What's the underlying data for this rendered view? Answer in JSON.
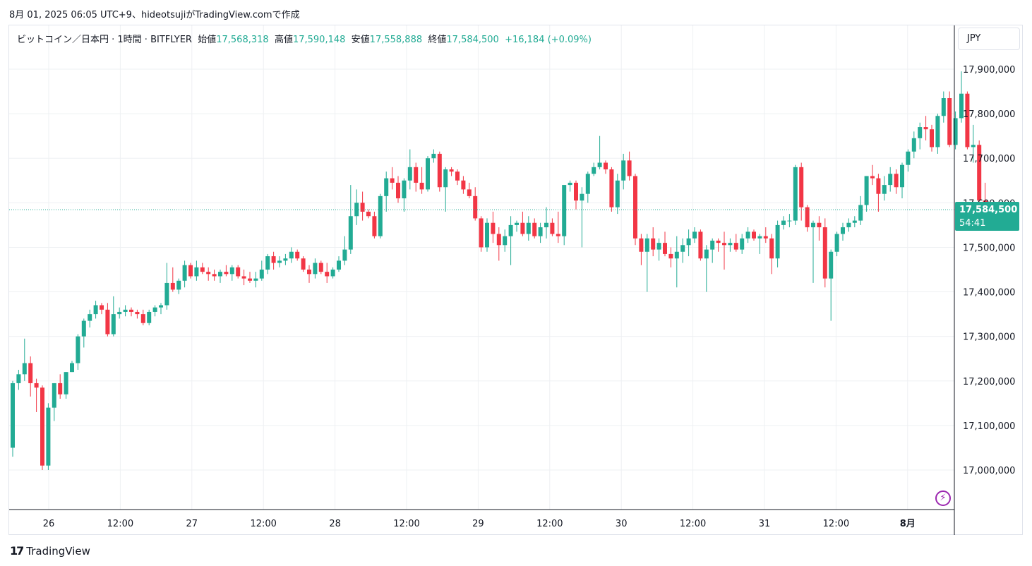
{
  "caption": "8月 01, 2025 06:05 UTC+9、hideotsujiがTradingView.comで作成",
  "legend": {
    "symbol": "ビットコイン／日本円 · 1時間 · BITFLYER",
    "open_label": "始値",
    "open": "17,568,318",
    "high_label": "高値",
    "high": "17,590,148",
    "low_label": "安値",
    "low": "17,558,888",
    "close_label": "終値",
    "close": "17,584,500",
    "change": "+16,184 (+0.09%)"
  },
  "currency_button": "JPY",
  "price_tag": {
    "price": "17,584,500",
    "countdown": "54:41"
  },
  "brand": {
    "mark": "17",
    "name": "TradingView"
  },
  "colors": {
    "up": "#22ab94",
    "down": "#f23645",
    "grid": "#eef0f3",
    "last_price_line": "#22ab94"
  },
  "chart_data": {
    "type": "candlestick",
    "ylim": [
      16910000,
      17960000
    ],
    "y_ticks": [
      17000000,
      17100000,
      17200000,
      17300000,
      17400000,
      17500000,
      17600000,
      17700000,
      17800000,
      17900000
    ],
    "y_tick_labels": [
      "17,000,000",
      "17,100,000",
      "17,200,000",
      "17,300,000",
      "17,400,000",
      "17,500,000",
      "17,600,000",
      "17,700,000",
      "17,800,000",
      "17,900,000"
    ],
    "x_labels": [
      {
        "label": "26",
        "hour": 4,
        "bold": false
      },
      {
        "label": "12:00",
        "hour": 16,
        "bold": false
      },
      {
        "label": "27",
        "hour": 28,
        "bold": false
      },
      {
        "label": "12:00",
        "hour": 40,
        "bold": false
      },
      {
        "label": "28",
        "hour": 52,
        "bold": false
      },
      {
        "label": "12:00",
        "hour": 64,
        "bold": false
      },
      {
        "label": "29",
        "hour": 76,
        "bold": false
      },
      {
        "label": "12:00",
        "hour": 88,
        "bold": false
      },
      {
        "label": "30",
        "hour": 100,
        "bold": false
      },
      {
        "label": "12:00",
        "hour": 112,
        "bold": false
      },
      {
        "label": "31",
        "hour": 124,
        "bold": false
      },
      {
        "label": "12:00",
        "hour": 136,
        "bold": false
      },
      {
        "label": "8月",
        "hour": 148,
        "bold": true
      }
    ],
    "last_price": 17584500,
    "candles": [
      [
        17050000,
        17200000,
        17030000,
        17195000
      ],
      [
        17195000,
        17225000,
        17180000,
        17215000
      ],
      [
        17215000,
        17295000,
        17200000,
        17240000
      ],
      [
        17240000,
        17255000,
        17165000,
        17195000
      ],
      [
        17195000,
        17205000,
        17130000,
        17185000
      ],
      [
        17185000,
        17190000,
        17000000,
        17010000
      ],
      [
        17010000,
        17150000,
        17000000,
        17140000
      ],
      [
        17140000,
        17195000,
        17110000,
        17195000
      ],
      [
        17195000,
        17215000,
        17160000,
        17170000
      ],
      [
        17170000,
        17220000,
        17160000,
        17220000
      ],
      [
        17220000,
        17245000,
        17220000,
        17240000
      ],
      [
        17240000,
        17305000,
        17225000,
        17300000
      ],
      [
        17300000,
        17340000,
        17275000,
        17335000
      ],
      [
        17335000,
        17360000,
        17320000,
        17350000
      ],
      [
        17350000,
        17380000,
        17340000,
        17370000
      ],
      [
        17370000,
        17375000,
        17350000,
        17360000
      ],
      [
        17360000,
        17375000,
        17300000,
        17305000
      ],
      [
        17305000,
        17390000,
        17300000,
        17350000
      ],
      [
        17350000,
        17365000,
        17340000,
        17355000
      ],
      [
        17355000,
        17370000,
        17345000,
        17360000
      ],
      [
        17360000,
        17365000,
        17345000,
        17355000
      ],
      [
        17355000,
        17360000,
        17340000,
        17350000
      ],
      [
        17350000,
        17360000,
        17325000,
        17330000
      ],
      [
        17330000,
        17360000,
        17325000,
        17355000
      ],
      [
        17355000,
        17370000,
        17345000,
        17365000
      ],
      [
        17365000,
        17375000,
        17350000,
        17370000
      ],
      [
        17370000,
        17465000,
        17360000,
        17420000
      ],
      [
        17420000,
        17455000,
        17400000,
        17405000
      ],
      [
        17405000,
        17430000,
        17395000,
        17425000
      ],
      [
        17425000,
        17470000,
        17410000,
        17460000
      ],
      [
        17460000,
        17465000,
        17430000,
        17435000
      ],
      [
        17435000,
        17470000,
        17425000,
        17455000
      ],
      [
        17455000,
        17465000,
        17440000,
        17445000
      ],
      [
        17445000,
        17455000,
        17425000,
        17440000
      ],
      [
        17440000,
        17450000,
        17425000,
        17435000
      ],
      [
        17435000,
        17450000,
        17420000,
        17445000
      ],
      [
        17445000,
        17460000,
        17435000,
        17440000
      ],
      [
        17440000,
        17460000,
        17425000,
        17455000
      ],
      [
        17455000,
        17460000,
        17430000,
        17435000
      ],
      [
        17435000,
        17450000,
        17415000,
        17430000
      ],
      [
        17430000,
        17445000,
        17420000,
        17425000
      ],
      [
        17425000,
        17445000,
        17410000,
        17430000
      ],
      [
        17430000,
        17470000,
        17425000,
        17450000
      ],
      [
        17450000,
        17485000,
        17440000,
        17480000
      ],
      [
        17480000,
        17490000,
        17450000,
        17465000
      ],
      [
        17465000,
        17480000,
        17455000,
        17470000
      ],
      [
        17470000,
        17485000,
        17460000,
        17475000
      ],
      [
        17475000,
        17500000,
        17465000,
        17490000
      ],
      [
        17490000,
        17495000,
        17470000,
        17475000
      ],
      [
        17475000,
        17480000,
        17445000,
        17450000
      ],
      [
        17450000,
        17460000,
        17420000,
        17440000
      ],
      [
        17440000,
        17475000,
        17430000,
        17465000
      ],
      [
        17465000,
        17470000,
        17440000,
        17445000
      ],
      [
        17445000,
        17465000,
        17420000,
        17435000
      ],
      [
        17435000,
        17455000,
        17430000,
        17450000
      ],
      [
        17450000,
        17480000,
        17445000,
        17470000
      ],
      [
        17470000,
        17525000,
        17460000,
        17495000
      ],
      [
        17495000,
        17640000,
        17485000,
        17570000
      ],
      [
        17570000,
        17630000,
        17550000,
        17600000
      ],
      [
        17600000,
        17625000,
        17560000,
        17580000
      ],
      [
        17580000,
        17585000,
        17565000,
        17570000
      ],
      [
        17570000,
        17580000,
        17520000,
        17525000
      ],
      [
        17525000,
        17620000,
        17520000,
        17615000
      ],
      [
        17615000,
        17670000,
        17580000,
        17655000
      ],
      [
        17655000,
        17680000,
        17630000,
        17645000
      ],
      [
        17645000,
        17660000,
        17600000,
        17610000
      ],
      [
        17610000,
        17655000,
        17580000,
        17650000
      ],
      [
        17650000,
        17720000,
        17630000,
        17680000
      ],
      [
        17680000,
        17690000,
        17625000,
        17645000
      ],
      [
        17645000,
        17680000,
        17620000,
        17630000
      ],
      [
        17630000,
        17705000,
        17625000,
        17700000
      ],
      [
        17700000,
        17720000,
        17690000,
        17710000
      ],
      [
        17710000,
        17715000,
        17625000,
        17635000
      ],
      [
        17635000,
        17680000,
        17580000,
        17675000
      ],
      [
        17675000,
        17680000,
        17660000,
        17670000
      ],
      [
        17670000,
        17675000,
        17640000,
        17650000
      ],
      [
        17650000,
        17660000,
        17620000,
        17630000
      ],
      [
        17630000,
        17645000,
        17610000,
        17615000
      ],
      [
        17615000,
        17635000,
        17560000,
        17565000
      ],
      [
        17565000,
        17570000,
        17490000,
        17500000
      ],
      [
        17500000,
        17565000,
        17490000,
        17555000
      ],
      [
        17555000,
        17580000,
        17510000,
        17530000
      ],
      [
        17530000,
        17545000,
        17470000,
        17505000
      ],
      [
        17505000,
        17540000,
        17490000,
        17525000
      ],
      [
        17525000,
        17570000,
        17460000,
        17550000
      ],
      [
        17550000,
        17560000,
        17535000,
        17555000
      ],
      [
        17555000,
        17580000,
        17525000,
        17530000
      ],
      [
        17530000,
        17570000,
        17515000,
        17555000
      ],
      [
        17555000,
        17565000,
        17520000,
        17525000
      ],
      [
        17525000,
        17555000,
        17510000,
        17545000
      ],
      [
        17545000,
        17590000,
        17520000,
        17555000
      ],
      [
        17555000,
        17565000,
        17525000,
        17530000
      ],
      [
        17530000,
        17580000,
        17510000,
        17525000
      ],
      [
        17525000,
        17640000,
        17505000,
        17640000
      ],
      [
        17640000,
        17650000,
        17625000,
        17645000
      ],
      [
        17645000,
        17650000,
        17585000,
        17605000
      ],
      [
        17605000,
        17635000,
        17500000,
        17620000
      ],
      [
        17620000,
        17670000,
        17600000,
        17665000
      ],
      [
        17665000,
        17690000,
        17660000,
        17680000
      ],
      [
        17680000,
        17750000,
        17675000,
        17690000
      ],
      [
        17690000,
        17695000,
        17665000,
        17675000
      ],
      [
        17675000,
        17680000,
        17580000,
        17590000
      ],
      [
        17590000,
        17665000,
        17575000,
        17650000
      ],
      [
        17650000,
        17710000,
        17630000,
        17695000
      ],
      [
        17695000,
        17715000,
        17650000,
        17660000
      ],
      [
        17660000,
        17665000,
        17505000,
        17520000
      ],
      [
        17520000,
        17530000,
        17460000,
        17490000
      ],
      [
        17490000,
        17530000,
        17400000,
        17520000
      ],
      [
        17520000,
        17545000,
        17480000,
        17495000
      ],
      [
        17495000,
        17520000,
        17470000,
        17510000
      ],
      [
        17510000,
        17535000,
        17480000,
        17485000
      ],
      [
        17485000,
        17500000,
        17455000,
        17475000
      ],
      [
        17475000,
        17525000,
        17410000,
        17490000
      ],
      [
        17490000,
        17520000,
        17465000,
        17505000
      ],
      [
        17505000,
        17540000,
        17480000,
        17520000
      ],
      [
        17520000,
        17545000,
        17510000,
        17535000
      ],
      [
        17535000,
        17540000,
        17470000,
        17475000
      ],
      [
        17475000,
        17505000,
        17400000,
        17495000
      ],
      [
        17495000,
        17520000,
        17465000,
        17515000
      ],
      [
        17515000,
        17520000,
        17490000,
        17510000
      ],
      [
        17510000,
        17535000,
        17450000,
        17505000
      ],
      [
        17505000,
        17520000,
        17490000,
        17510000
      ],
      [
        17510000,
        17530000,
        17490000,
        17495000
      ],
      [
        17495000,
        17530000,
        17485000,
        17520000
      ],
      [
        17520000,
        17545000,
        17510000,
        17535000
      ],
      [
        17535000,
        17540000,
        17515000,
        17520000
      ],
      [
        17520000,
        17530000,
        17485000,
        17525000
      ],
      [
        17525000,
        17545000,
        17510000,
        17520000
      ],
      [
        17520000,
        17530000,
        17440000,
        17475000
      ],
      [
        17475000,
        17560000,
        17455000,
        17550000
      ],
      [
        17550000,
        17570000,
        17540000,
        17560000
      ],
      [
        17560000,
        17575000,
        17545000,
        17560000
      ],
      [
        17560000,
        17685000,
        17550000,
        17680000
      ],
      [
        17680000,
        17690000,
        17560000,
        17590000
      ],
      [
        17590000,
        17595000,
        17535000,
        17545000
      ],
      [
        17545000,
        17560000,
        17420000,
        17555000
      ],
      [
        17555000,
        17570000,
        17515000,
        17545000
      ],
      [
        17545000,
        17565000,
        17410000,
        17430000
      ],
      [
        17430000,
        17495000,
        17335000,
        17490000
      ],
      [
        17490000,
        17535000,
        17480000,
        17530000
      ],
      [
        17530000,
        17555000,
        17515000,
        17545000
      ],
      [
        17545000,
        17565000,
        17535000,
        17555000
      ],
      [
        17555000,
        17570000,
        17545000,
        17560000
      ],
      [
        17560000,
        17615000,
        17550000,
        17595000
      ],
      [
        17595000,
        17660000,
        17580000,
        17660000
      ],
      [
        17660000,
        17685000,
        17640000,
        17655000
      ],
      [
        17655000,
        17665000,
        17580000,
        17620000
      ],
      [
        17620000,
        17660000,
        17605000,
        17640000
      ],
      [
        17640000,
        17680000,
        17625000,
        17665000
      ],
      [
        17665000,
        17675000,
        17620000,
        17635000
      ],
      [
        17635000,
        17690000,
        17610000,
        17685000
      ],
      [
        17685000,
        17720000,
        17670000,
        17715000
      ],
      [
        17715000,
        17760000,
        17700000,
        17745000
      ],
      [
        17745000,
        17780000,
        17720000,
        17770000
      ],
      [
        17770000,
        17795000,
        17740000,
        17765000
      ],
      [
        17765000,
        17775000,
        17715000,
        17725000
      ],
      [
        17725000,
        17800000,
        17710000,
        17795000
      ],
      [
        17795000,
        17850000,
        17780000,
        17835000
      ],
      [
        17835000,
        17850000,
        17725000,
        17730000
      ],
      [
        17730000,
        17805000,
        17720000,
        17790000
      ],
      [
        17790000,
        17895000,
        17780000,
        17845000
      ],
      [
        17845000,
        17850000,
        17720000,
        17725000
      ],
      [
        17725000,
        17775000,
        17690000,
        17730000
      ],
      [
        17730000,
        17740000,
        17595000,
        17605000
      ],
      [
        17605000,
        17645000,
        17555000,
        17568318
      ],
      [
        17568318,
        17590148,
        17558888,
        17584500
      ]
    ]
  }
}
